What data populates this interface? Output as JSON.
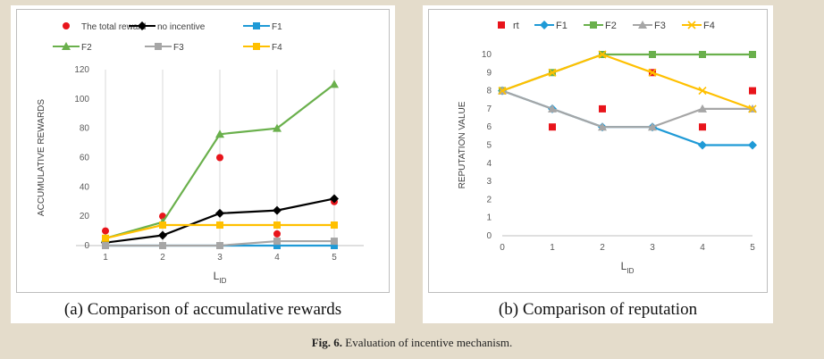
{
  "figure_caption": {
    "label": "Fig. 6.",
    "text": "Evaluation of incentive mechanism."
  },
  "chart_data": [
    {
      "type": "line",
      "caption": "(a) Comparison of accumulative rewards",
      "xlabel": "L",
      "xlabel_sub": "ID",
      "ylabel": "ACCUMULATIVE REWARDS",
      "x": [
        1,
        2,
        3,
        4,
        5
      ],
      "ylim": [
        0,
        120
      ],
      "yticks": [
        0,
        20,
        40,
        60,
        80,
        100,
        120
      ],
      "grid": "vertical",
      "legend_position": "top",
      "series": [
        {
          "name": "The total reward",
          "style": "scatter",
          "marker": "circle",
          "color": "#e8141b",
          "values": [
            10,
            20,
            60,
            8,
            30
          ]
        },
        {
          "name": "no incentive",
          "style": "line",
          "marker": "diamond",
          "color": "#000000",
          "values": [
            2,
            7,
            22,
            24,
            32
          ]
        },
        {
          "name": "F1",
          "style": "line",
          "marker": "square",
          "color": "#1f9ad6",
          "values": [
            0,
            0,
            0,
            0,
            0
          ]
        },
        {
          "name": "F2",
          "style": "line",
          "marker": "triangle",
          "color": "#6ab04c",
          "values": [
            5,
            16,
            76,
            80,
            110
          ]
        },
        {
          "name": "F3",
          "style": "line",
          "marker": "square",
          "color": "#a6a6a6",
          "values": [
            0,
            0,
            0,
            3,
            3
          ]
        },
        {
          "name": "F4",
          "style": "line",
          "marker": "square",
          "color": "#ffc000",
          "values": [
            5,
            14,
            14,
            14,
            14
          ]
        }
      ]
    },
    {
      "type": "line",
      "caption": "(b) Comparison of reputation",
      "xlabel": "L",
      "xlabel_sub": "ID",
      "ylabel": "REPUTATION VALUE",
      "x": [
        0,
        1,
        2,
        3,
        4,
        5
      ],
      "ylim": [
        0,
        10
      ],
      "yticks": [
        0,
        1,
        2,
        3,
        4,
        5,
        6,
        7,
        8,
        9,
        10
      ],
      "grid": "none",
      "legend_position": "top",
      "series": [
        {
          "name": "rt",
          "style": "scatter",
          "marker": "square",
          "color": "#e8141b",
          "values": [
            8,
            6,
            7,
            9,
            6,
            8
          ]
        },
        {
          "name": "F1",
          "style": "line",
          "marker": "diamond",
          "color": "#1f9ad6",
          "values": [
            8,
            7,
            6,
            6,
            5,
            5
          ]
        },
        {
          "name": "F2",
          "style": "line",
          "marker": "square",
          "color": "#6ab04c",
          "values": [
            8,
            9,
            10,
            10,
            10,
            10
          ]
        },
        {
          "name": "F3",
          "style": "line",
          "marker": "triangle",
          "color": "#a6a6a6",
          "values": [
            8,
            7,
            6,
            6,
            7,
            7
          ]
        },
        {
          "name": "F4",
          "style": "line",
          "marker": "x",
          "color": "#ffc000",
          "values": [
            8,
            9,
            10,
            9,
            8,
            7
          ]
        }
      ]
    }
  ]
}
